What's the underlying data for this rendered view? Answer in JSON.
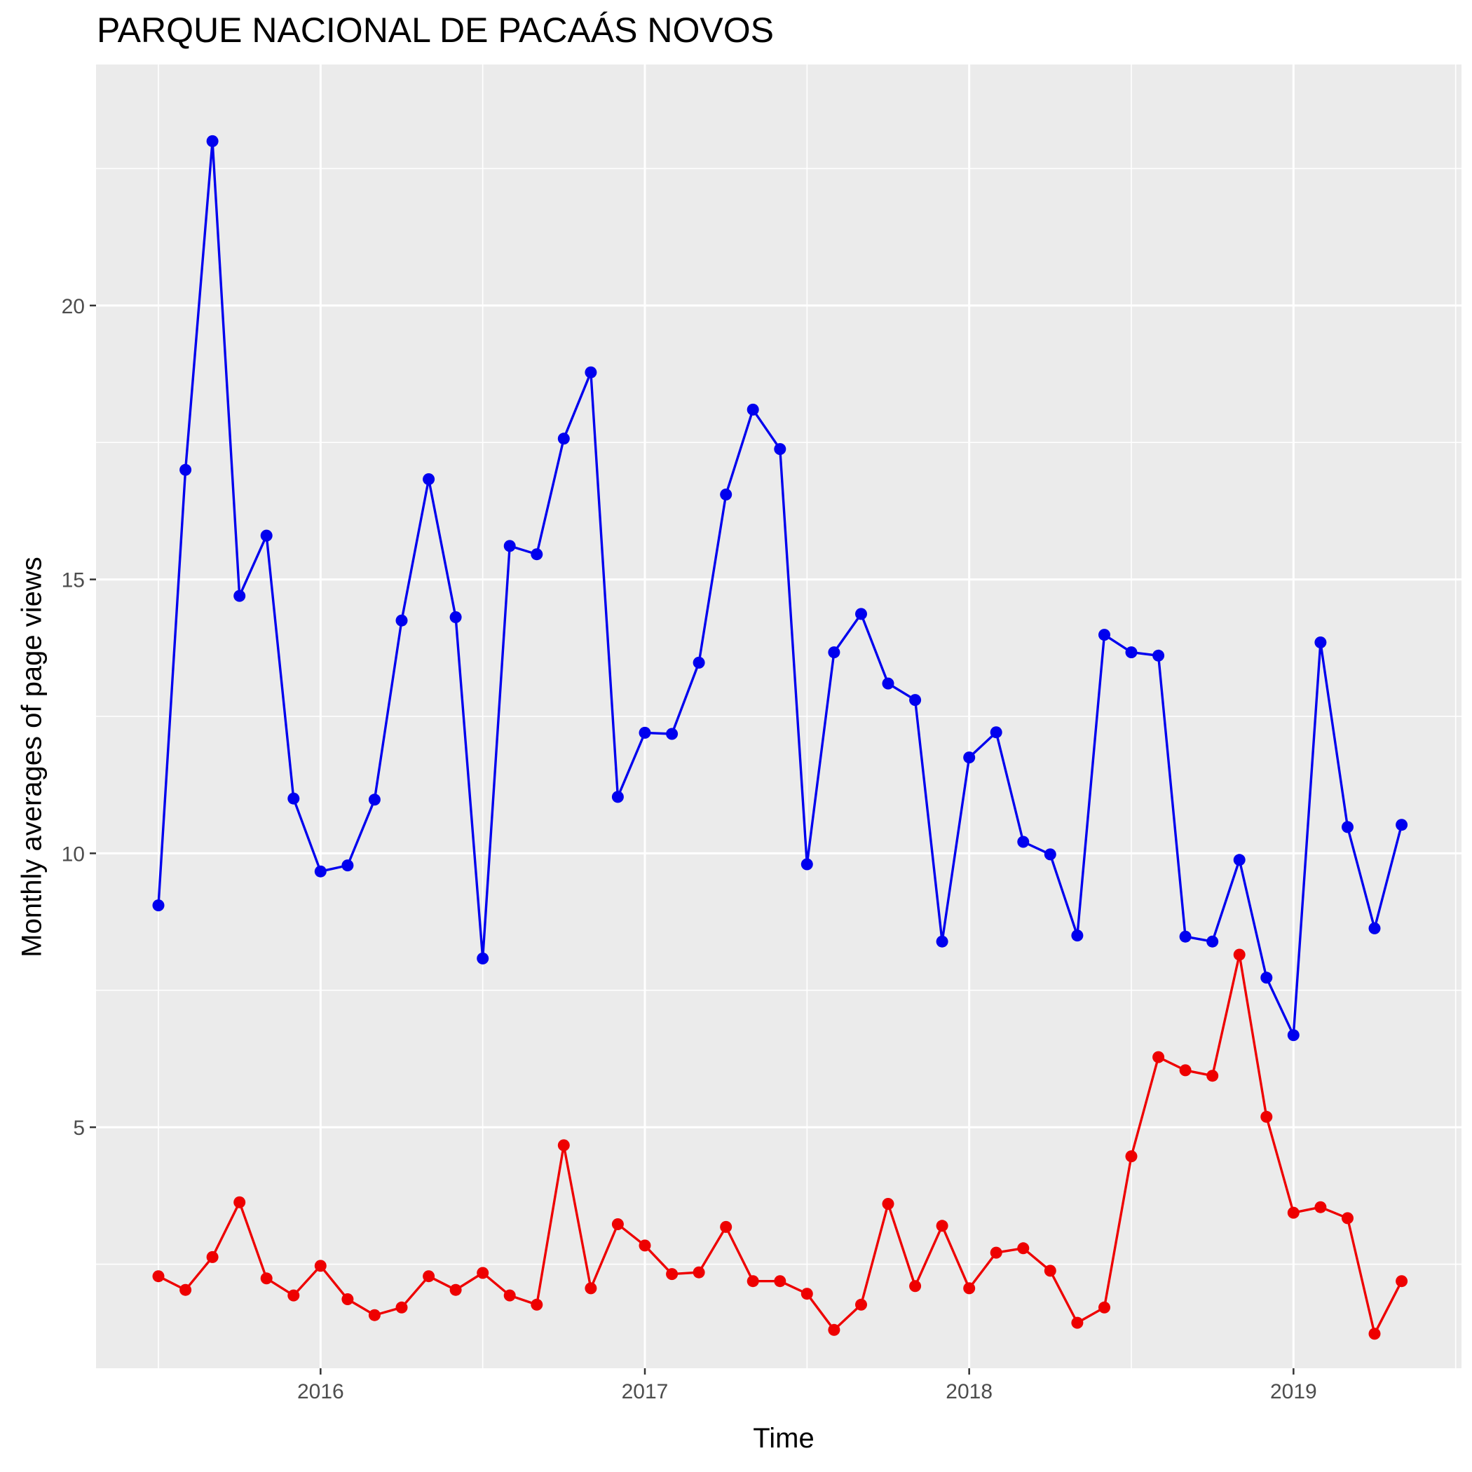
{
  "chart_data": {
    "type": "line",
    "title": "PARQUE NACIONAL DE PACAÁS NOVOS",
    "xlabel": "Time",
    "ylabel": "Monthly averages of page views",
    "x_ticks": [
      "2016",
      "2017",
      "2018",
      "2019"
    ],
    "y_ticks": [
      5,
      10,
      15,
      20
    ],
    "ylim": [
      0.6,
      24.4
    ],
    "grid": true,
    "legend": "none",
    "x": [
      "2015-07",
      "2015-08",
      "2015-09",
      "2015-10",
      "2015-11",
      "2015-12",
      "2016-01",
      "2016-02",
      "2016-03",
      "2016-04",
      "2016-05",
      "2016-06",
      "2016-07",
      "2016-08",
      "2016-09",
      "2016-10",
      "2016-11",
      "2016-12",
      "2017-01",
      "2017-02",
      "2017-03",
      "2017-04",
      "2017-05",
      "2017-06",
      "2017-07",
      "2017-08",
      "2017-09",
      "2017-10",
      "2017-11",
      "2017-12",
      "2018-01",
      "2018-02",
      "2018-03",
      "2018-04",
      "2018-05",
      "2018-06",
      "2018-07",
      "2018-08",
      "2018-09",
      "2018-10",
      "2018-11",
      "2018-12",
      "2019-01",
      "2019-02",
      "2019-03",
      "2019-04",
      "2019-05"
    ],
    "series": [
      {
        "color": "#0000ee",
        "values": [
          9.05,
          17.0,
          23.0,
          14.7,
          15.8,
          11.0,
          9.67,
          9.78,
          10.98,
          14.25,
          16.83,
          14.31,
          8.08,
          15.61,
          15.46,
          17.57,
          18.78,
          11.03,
          12.2,
          12.18,
          13.48,
          16.55,
          18.1,
          17.38,
          9.8,
          13.67,
          14.37,
          13.1,
          12.8,
          8.39,
          11.75,
          12.21,
          10.21,
          9.98,
          8.5,
          13.99,
          13.67,
          13.61,
          8.48,
          8.39,
          9.88,
          7.73,
          6.68,
          13.85,
          10.48,
          8.63,
          10.52
        ]
      },
      {
        "color": "#ee0000",
        "values": [
          2.28,
          2.03,
          2.63,
          3.63,
          2.24,
          1.93,
          2.47,
          1.86,
          1.57,
          1.71,
          2.28,
          2.03,
          2.34,
          1.93,
          1.76,
          4.67,
          2.06,
          3.23,
          2.84,
          2.32,
          2.35,
          3.18,
          2.19,
          2.19,
          1.96,
          1.3,
          1.76,
          3.6,
          2.1,
          3.2,
          2.06,
          2.71,
          2.79,
          2.38,
          1.43,
          1.71,
          4.47,
          6.28,
          6.04,
          5.94,
          8.15,
          5.19,
          3.44,
          3.54,
          3.34,
          1.23,
          2.19
        ]
      }
    ]
  }
}
